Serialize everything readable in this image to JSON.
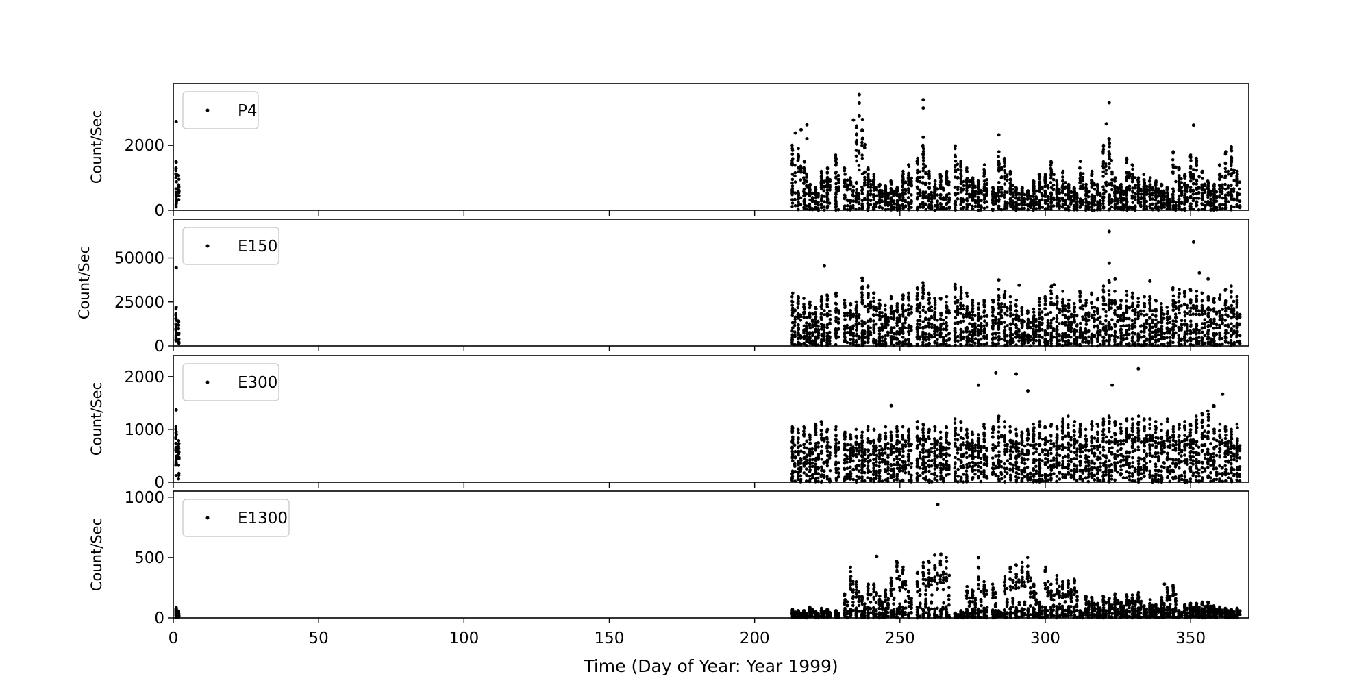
{
  "chart_data": [
    {
      "type": "scatter",
      "ylabel": "Count/Sec",
      "xlim": [
        0,
        370
      ],
      "ylim": [
        0,
        3900
      ],
      "yticks": [
        0,
        2000
      ],
      "legend": "P4",
      "legend_position": "top-left",
      "marker_color": "#000000",
      "base": 500,
      "spread": 700,
      "outliers": [
        [
          1,
          2730
        ],
        [
          1,
          1480
        ],
        [
          214,
          2380
        ],
        [
          216,
          2480
        ],
        [
          218,
          2630
        ],
        [
          218,
          2200
        ],
        [
          234,
          2780
        ],
        [
          236,
          3560
        ],
        [
          236,
          3300
        ],
        [
          236,
          2900
        ],
        [
          258,
          3400
        ],
        [
          258,
          3150
        ],
        [
          258,
          2250
        ],
        [
          269,
          1980
        ],
        [
          284,
          2320
        ],
        [
          321,
          2660
        ],
        [
          322,
          3310
        ],
        [
          322,
          2200
        ],
        [
          351,
          2620
        ],
        [
          364,
          1950
        ]
      ],
      "peaks": [
        [
          1,
          1500
        ],
        [
          213,
          2000
        ],
        [
          215,
          1900
        ],
        [
          217,
          1500
        ],
        [
          219,
          800
        ],
        [
          221,
          700
        ],
        [
          223,
          1200
        ],
        [
          225,
          1300
        ],
        [
          228,
          1700
        ],
        [
          231,
          1300
        ],
        [
          233,
          1000
        ],
        [
          235,
          2600
        ],
        [
          237,
          2800
        ],
        [
          239,
          1300
        ],
        [
          241,
          1100
        ],
        [
          243,
          800
        ],
        [
          245,
          750
        ],
        [
          247,
          900
        ],
        [
          249,
          700
        ],
        [
          251,
          1200
        ],
        [
          253,
          1400
        ],
        [
          256,
          1600
        ],
        [
          258,
          2000
        ],
        [
          260,
          1200
        ],
        [
          262,
          900
        ],
        [
          264,
          1100
        ],
        [
          266,
          1200
        ],
        [
          269,
          1900
        ],
        [
          271,
          1500
        ],
        [
          273,
          1300
        ],
        [
          275,
          1000
        ],
        [
          277,
          900
        ],
        [
          279,
          1400
        ],
        [
          282,
          700
        ],
        [
          284,
          1800
        ],
        [
          286,
          1600
        ],
        [
          288,
          1200
        ],
        [
          290,
          700
        ],
        [
          292,
          700
        ],
        [
          294,
          600
        ],
        [
          296,
          900
        ],
        [
          298,
          1100
        ],
        [
          300,
          1100
        ],
        [
          302,
          1500
        ],
        [
          304,
          900
        ],
        [
          306,
          1200
        ],
        [
          308,
          800
        ],
        [
          310,
          700
        ],
        [
          312,
          1500
        ],
        [
          314,
          800
        ],
        [
          316,
          1200
        ],
        [
          318,
          800
        ],
        [
          320,
          2000
        ],
        [
          322,
          2200
        ],
        [
          324,
          1000
        ],
        [
          326,
          800
        ],
        [
          328,
          1600
        ],
        [
          330,
          1400
        ],
        [
          332,
          1000
        ],
        [
          334,
          1100
        ],
        [
          336,
          1000
        ],
        [
          338,
          900
        ],
        [
          340,
          800
        ],
        [
          342,
          700
        ],
        [
          344,
          1800
        ],
        [
          346,
          1300
        ],
        [
          348,
          1100
        ],
        [
          350,
          1700
        ],
        [
          352,
          1600
        ],
        [
          354,
          1200
        ],
        [
          356,
          900
        ],
        [
          358,
          800
        ],
        [
          360,
          1400
        ],
        [
          362,
          1800
        ],
        [
          364,
          1900
        ],
        [
          366,
          1200
        ]
      ]
    },
    {
      "type": "scatter",
      "ylabel": "Count/Sec",
      "xlim": [
        0,
        370
      ],
      "ylim": [
        0,
        72000
      ],
      "yticks": [
        0,
        25000,
        50000
      ],
      "legend": "E150",
      "legend_position": "top-left",
      "marker_color": "#000000",
      "base": 9000,
      "spread": 8000,
      "outliers": [
        [
          1,
          44500
        ],
        [
          1,
          22000
        ],
        [
          224,
          45500
        ],
        [
          322,
          65000
        ],
        [
          322,
          47000
        ],
        [
          351,
          59000
        ],
        [
          353,
          41500
        ],
        [
          356,
          38000
        ],
        [
          324,
          38000
        ],
        [
          336,
          36800
        ],
        [
          284,
          37500
        ],
        [
          291,
          34500
        ],
        [
          303,
          34800
        ],
        [
          237,
          38500
        ]
      ],
      "peaks": [
        [
          1,
          21000
        ],
        [
          213,
          30000
        ],
        [
          215,
          28000
        ],
        [
          217,
          27000
        ],
        [
          219,
          25000
        ],
        [
          221,
          22000
        ],
        [
          223,
          28000
        ],
        [
          225,
          29000
        ],
        [
          228,
          30000
        ],
        [
          231,
          26000
        ],
        [
          233,
          24000
        ],
        [
          235,
          25000
        ],
        [
          237,
          37000
        ],
        [
          239,
          34000
        ],
        [
          241,
          30000
        ],
        [
          243,
          26000
        ],
        [
          245,
          23000
        ],
        [
          247,
          28000
        ],
        [
          249,
          24000
        ],
        [
          251,
          29000
        ],
        [
          253,
          30000
        ],
        [
          256,
          33000
        ],
        [
          258,
          36000
        ],
        [
          260,
          30000
        ],
        [
          262,
          27000
        ],
        [
          264,
          27000
        ],
        [
          266,
          28000
        ],
        [
          269,
          35000
        ],
        [
          271,
          33000
        ],
        [
          273,
          30000
        ],
        [
          275,
          26000
        ],
        [
          277,
          24000
        ],
        [
          279,
          26000
        ],
        [
          282,
          26000
        ],
        [
          284,
          32000
        ],
        [
          286,
          31000
        ],
        [
          288,
          28000
        ],
        [
          290,
          26000
        ],
        [
          292,
          22000
        ],
        [
          294,
          20000
        ],
        [
          296,
          21000
        ],
        [
          298,
          27000
        ],
        [
          300,
          28000
        ],
        [
          302,
          34000
        ],
        [
          304,
          28000
        ],
        [
          306,
          31000
        ],
        [
          308,
          26000
        ],
        [
          310,
          24000
        ],
        [
          312,
          31000
        ],
        [
          314,
          26000
        ],
        [
          316,
          30000
        ],
        [
          318,
          27000
        ],
        [
          320,
          34000
        ],
        [
          322,
          37000
        ],
        [
          324,
          31000
        ],
        [
          326,
          26000
        ],
        [
          328,
          31000
        ],
        [
          330,
          30000
        ],
        [
          332,
          27000
        ],
        [
          334,
          28000
        ],
        [
          336,
          28000
        ],
        [
          338,
          26000
        ],
        [
          340,
          24000
        ],
        [
          342,
          22000
        ],
        [
          344,
          33000
        ],
        [
          346,
          32000
        ],
        [
          348,
          31000
        ],
        [
          350,
          32000
        ],
        [
          352,
          31000
        ],
        [
          354,
          30000
        ],
        [
          356,
          28000
        ],
        [
          358,
          27000
        ],
        [
          360,
          29000
        ],
        [
          362,
          32000
        ],
        [
          364,
          34000
        ],
        [
          366,
          28000
        ]
      ]
    },
    {
      "type": "scatter",
      "ylabel": "Count/Sec",
      "xlim": [
        0,
        370
      ],
      "ylim": [
        0,
        2400
      ],
      "yticks": [
        0,
        1000,
        2000
      ],
      "legend": "E300",
      "legend_position": "top-left",
      "marker_color": "#000000",
      "base": 450,
      "spread": 500,
      "outliers": [
        [
          1,
          1370
        ],
        [
          247,
          1450
        ],
        [
          277,
          1840
        ],
        [
          283,
          2070
        ],
        [
          290,
          2050
        ],
        [
          294,
          1730
        ],
        [
          323,
          1840
        ],
        [
          332,
          2150
        ],
        [
          361,
          1670
        ]
      ],
      "peaks": [
        [
          1,
          1050
        ],
        [
          213,
          1050
        ],
        [
          215,
          1000
        ],
        [
          217,
          1050
        ],
        [
          219,
          900
        ],
        [
          221,
          1100
        ],
        [
          223,
          1150
        ],
        [
          225,
          1000
        ],
        [
          228,
          1050
        ],
        [
          231,
          950
        ],
        [
          233,
          900
        ],
        [
          235,
          1000
        ],
        [
          237,
          950
        ],
        [
          239,
          1050
        ],
        [
          241,
          1000
        ],
        [
          243,
          900
        ],
        [
          245,
          1050
        ],
        [
          247,
          950
        ],
        [
          249,
          1050
        ],
        [
          251,
          1050
        ],
        [
          253,
          1000
        ],
        [
          256,
          1150
        ],
        [
          258,
          1100
        ],
        [
          260,
          1000
        ],
        [
          262,
          1050
        ],
        [
          264,
          950
        ],
        [
          266,
          1050
        ],
        [
          269,
          1200
        ],
        [
          271,
          1150
        ],
        [
          273,
          1000
        ],
        [
          275,
          950
        ],
        [
          277,
          900
        ],
        [
          279,
          1100
        ],
        [
          282,
          1050
        ],
        [
          284,
          1250
        ],
        [
          286,
          1150
        ],
        [
          288,
          1050
        ],
        [
          290,
          1000
        ],
        [
          292,
          950
        ],
        [
          294,
          1000
        ],
        [
          296,
          1100
        ],
        [
          298,
          1150
        ],
        [
          300,
          1050
        ],
        [
          302,
          1100
        ],
        [
          304,
          1050
        ],
        [
          306,
          1200
        ],
        [
          308,
          1250
        ],
        [
          310,
          1150
        ],
        [
          312,
          1100
        ],
        [
          314,
          1000
        ],
        [
          316,
          1150
        ],
        [
          318,
          1100
        ],
        [
          320,
          1200
        ],
        [
          322,
          1250
        ],
        [
          324,
          1150
        ],
        [
          326,
          1100
        ],
        [
          328,
          1200
        ],
        [
          330,
          1200
        ],
        [
          332,
          1250
        ],
        [
          334,
          1200
        ],
        [
          336,
          1200
        ],
        [
          338,
          1150
        ],
        [
          340,
          1100
        ],
        [
          342,
          1200
        ],
        [
          344,
          1050
        ],
        [
          346,
          1100
        ],
        [
          348,
          1150
        ],
        [
          350,
          1100
        ],
        [
          352,
          1250
        ],
        [
          354,
          1300
        ],
        [
          356,
          1350
        ],
        [
          358,
          1450
        ],
        [
          360,
          1100
        ],
        [
          362,
          1050
        ],
        [
          364,
          1000
        ],
        [
          366,
          1100
        ]
      ]
    },
    {
      "type": "scatter",
      "xlabel": "Time (Day of Year: Year 1999)",
      "ylabel": "Count/Sec",
      "xlim": [
        0,
        370
      ],
      "ylim": [
        0,
        1050
      ],
      "yticks": [
        0,
        500,
        1000
      ],
      "xticks": [
        0,
        50,
        100,
        150,
        200,
        250,
        300,
        350
      ],
      "legend": "E1300",
      "legend_position": "top-left",
      "marker_color": "#000000",
      "base": 60,
      "spread": 40,
      "outliers": [
        [
          263,
          940
        ],
        [
          242,
          510
        ],
        [
          277,
          500
        ],
        [
          341,
          280
        ]
      ],
      "peaks": [
        [
          1,
          85
        ],
        [
          213,
          70
        ],
        [
          215,
          60
        ],
        [
          217,
          60
        ],
        [
          219,
          90
        ],
        [
          221,
          50
        ],
        [
          223,
          80
        ],
        [
          225,
          70
        ],
        [
          228,
          60
        ],
        [
          231,
          200
        ],
        [
          233,
          420
        ],
        [
          235,
          300
        ],
        [
          237,
          180
        ],
        [
          239,
          280
        ],
        [
          241,
          280
        ],
        [
          243,
          180
        ],
        [
          245,
          230
        ],
        [
          247,
          330
        ],
        [
          249,
          470
        ],
        [
          251,
          420
        ],
        [
          253,
          220
        ],
        [
          256,
          380
        ],
        [
          258,
          460
        ],
        [
          260,
          470
        ],
        [
          262,
          520
        ],
        [
          264,
          530
        ],
        [
          266,
          500
        ],
        [
          269,
          40
        ],
        [
          271,
          60
        ],
        [
          273,
          260
        ],
        [
          275,
          230
        ],
        [
          277,
          420
        ],
        [
          279,
          300
        ],
        [
          282,
          280
        ],
        [
          284,
          60
        ],
        [
          286,
          340
        ],
        [
          288,
          420
        ],
        [
          290,
          440
        ],
        [
          292,
          460
        ],
        [
          294,
          500
        ],
        [
          296,
          280
        ],
        [
          298,
          130
        ],
        [
          300,
          420
        ],
        [
          302,
          280
        ],
        [
          304,
          350
        ],
        [
          306,
          300
        ],
        [
          308,
          310
        ],
        [
          310,
          320
        ],
        [
          312,
          60
        ],
        [
          314,
          180
        ],
        [
          316,
          170
        ],
        [
          318,
          120
        ],
        [
          320,
          180
        ],
        [
          322,
          160
        ],
        [
          324,
          200
        ],
        [
          326,
          130
        ],
        [
          328,
          190
        ],
        [
          330,
          190
        ],
        [
          332,
          210
        ],
        [
          334,
          100
        ],
        [
          336,
          150
        ],
        [
          338,
          110
        ],
        [
          340,
          170
        ],
        [
          342,
          250
        ],
        [
          344,
          270
        ],
        [
          346,
          60
        ],
        [
          348,
          110
        ],
        [
          350,
          120
        ],
        [
          352,
          120
        ],
        [
          354,
          130
        ],
        [
          356,
          130
        ],
        [
          358,
          100
        ],
        [
          360,
          90
        ],
        [
          362,
          80
        ],
        [
          364,
          70
        ],
        [
          366,
          80
        ]
      ]
    }
  ]
}
